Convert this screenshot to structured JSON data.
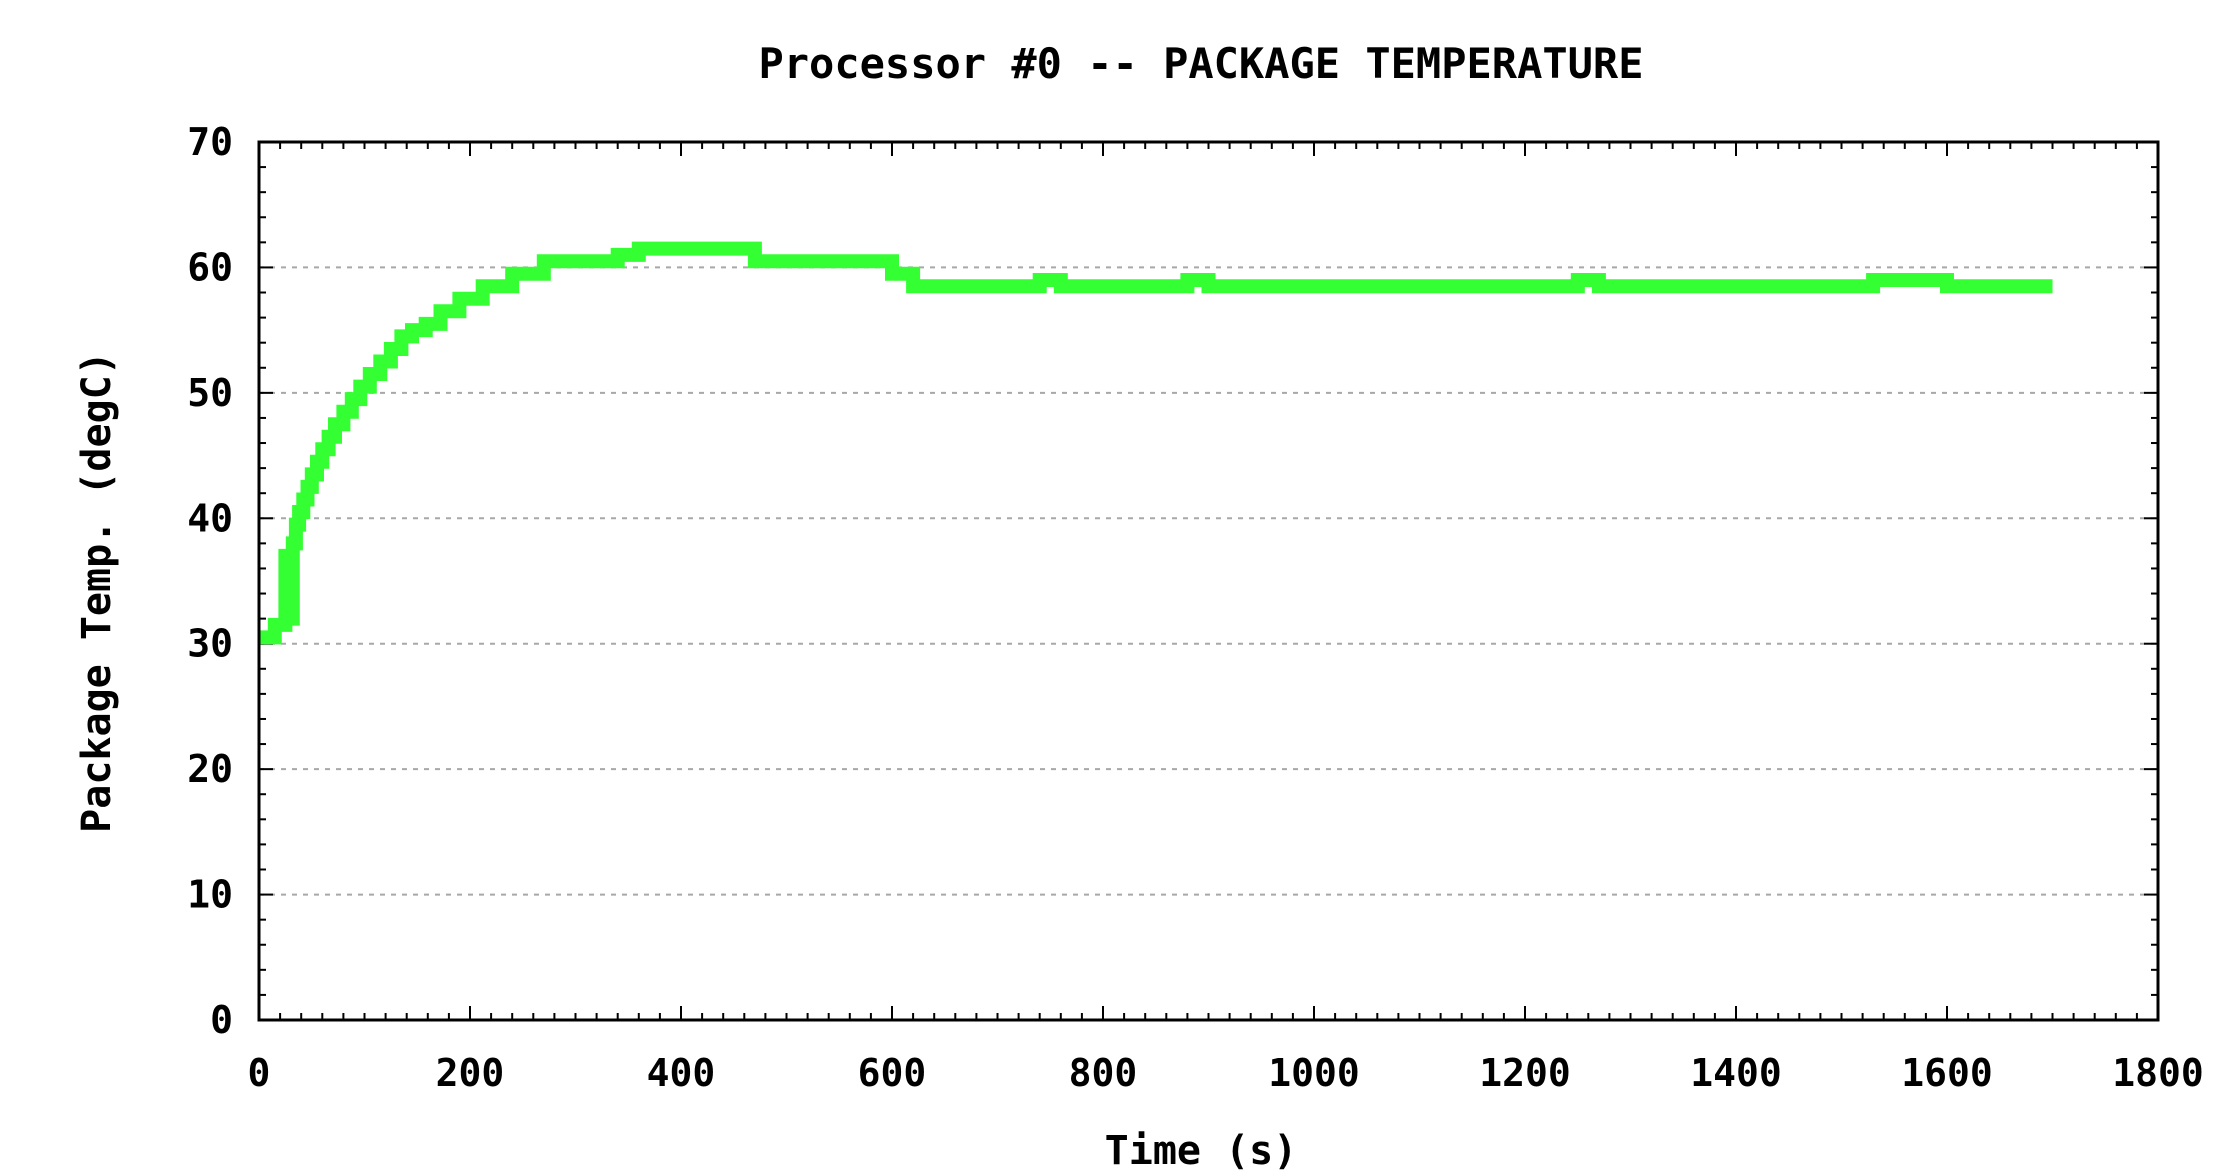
{
  "chart_data": {
    "type": "line",
    "title": "Processor #0 -- PACKAGE TEMPERATURE",
    "xlabel": "Time (s)",
    "ylabel": "Package Temp. (degC)",
    "xlim": [
      0,
      1800
    ],
    "ylim": [
      0,
      70
    ],
    "xticks": [
      0,
      200,
      400,
      600,
      800,
      1000,
      1200,
      1400,
      1600,
      1800
    ],
    "yticks": [
      0,
      10,
      20,
      30,
      40,
      50,
      60,
      70
    ],
    "xtick_labels": [
      "0",
      "200",
      "400",
      "600",
      "800",
      "1000",
      "1200",
      "1400",
      "1600",
      "1800"
    ],
    "ytick_labels": [
      "0",
      "10",
      "20",
      "30",
      "40",
      "50",
      "60",
      "70"
    ],
    "grid": true,
    "legend": false,
    "series": [
      {
        "color": "#33ff33",
        "x": [
          0,
          15,
          15,
          25,
          25,
          28,
          28,
          32,
          32,
          35,
          38,
          42,
          46,
          50,
          55,
          60,
          66,
          72,
          80,
          88,
          96,
          105,
          115,
          125,
          135,
          145,
          158,
          172,
          190,
          212,
          240,
          270,
          300,
          340,
          360,
          400,
          450,
          470,
          500,
          560,
          600,
          620,
          680,
          730,
          740,
          760,
          800,
          880,
          900,
          1000,
          1100,
          1250,
          1270,
          1300,
          1400,
          1500,
          1530,
          1600,
          1700
        ],
        "y": [
          30.5,
          30.5,
          31.5,
          31.5,
          37,
          37,
          32,
          32,
          38,
          39.5,
          40.5,
          41.5,
          42.5,
          43.5,
          44.5,
          45.5,
          46.5,
          47.5,
          48.5,
          49.5,
          50.5,
          51.5,
          52.5,
          53.5,
          54.5,
          55,
          55.5,
          56.5,
          57.5,
          58.5,
          59.5,
          60.5,
          60.5,
          61,
          61.5,
          61.5,
          61.5,
          60.5,
          60.5,
          60.5,
          59.5,
          58.5,
          58.5,
          58.5,
          59,
          58.5,
          58.5,
          59,
          58.5,
          58.5,
          58.5,
          59,
          58.5,
          58.5,
          58.5,
          58.5,
          59,
          58.5,
          58.5
        ]
      }
    ]
  }
}
